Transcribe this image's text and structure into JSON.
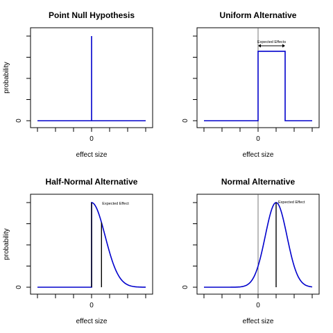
{
  "chart_data": [
    {
      "type": "line",
      "title": "Point Null Hypothesis",
      "xlabel": "effect size",
      "ylabel": "probability",
      "xlim": [
        -3,
        3
      ],
      "ylim": [
        0,
        1
      ],
      "x_tick_label": "0",
      "y_tick_label": "0",
      "curve": "point-null",
      "series": [
        {
          "values": [
            [
              -3,
              0
            ],
            [
              0,
              0
            ],
            [
              0,
              1
            ],
            [
              0,
              0
            ],
            [
              3,
              0
            ]
          ]
        }
      ],
      "annotation": ""
    },
    {
      "type": "line",
      "title": "Uniform Alternative",
      "xlabel": "effect size",
      "ylabel": "",
      "xlim": [
        -3,
        3
      ],
      "ylim": [
        0,
        1
      ],
      "x_tick_label": "0",
      "y_tick_label": "0",
      "curve": "uniform",
      "series": [
        {
          "values": [
            [
              -3,
              0
            ],
            [
              0,
              0
            ],
            [
              0,
              0.82
            ],
            [
              1.5,
              0.82
            ],
            [
              1.5,
              0
            ],
            [
              3,
              0
            ]
          ]
        }
      ],
      "annotation": "Expected Effects",
      "annotation_range": [
        0,
        1.5
      ]
    },
    {
      "type": "line",
      "title": "Half-Normal Alternative",
      "xlabel": "effect size",
      "ylabel": "probability",
      "xlim": [
        -3,
        3
      ],
      "ylim": [
        0,
        1
      ],
      "x_tick_label": "0",
      "y_tick_label": "0",
      "curve": "half-normal",
      "sd": 0.75,
      "annotation": "Expected Effect",
      "expected_x": 0.55
    },
    {
      "type": "line",
      "title": "Normal Alternative",
      "xlabel": "effect size",
      "ylabel": "",
      "xlim": [
        -3,
        3
      ],
      "ylim": [
        0,
        1
      ],
      "x_tick_label": "0",
      "y_tick_label": "0",
      "curve": "normal",
      "mean": 1,
      "sd": 0.6,
      "annotation": "Expected Effect",
      "expected_x": 1
    }
  ],
  "colors": {
    "curve": "#0000cc",
    "axis": "#000000",
    "zero_line": "#555555"
  }
}
